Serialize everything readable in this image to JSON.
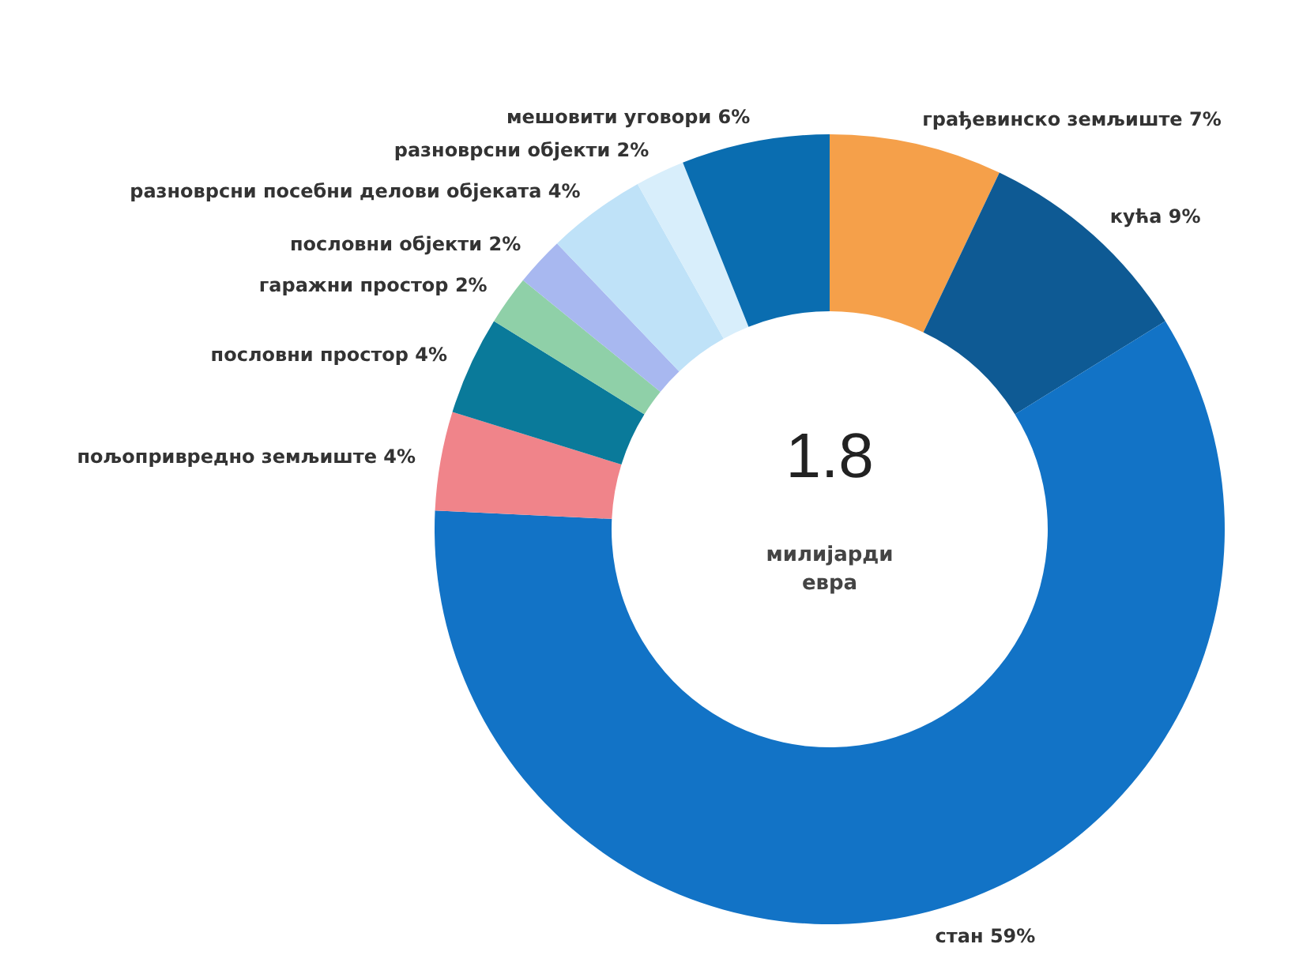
{
  "chart_data": {
    "type": "donut",
    "categories": [
      "грађевинско земљиште",
      "кућа",
      "стан",
      "пољопривредно земљиште",
      "пословни простор",
      "гаражни простор",
      "пословни објекти",
      "разноврсни посебни делови објеката",
      "разноврсни објекти",
      "мешовити уговори"
    ],
    "values": [
      7,
      9,
      59,
      4,
      4,
      2,
      2,
      4,
      2,
      6
    ],
    "value_labels": [
      "7%",
      "9%",
      "59%",
      "4%",
      "4%",
      "2%",
      "2%",
      "4%",
      "2%",
      "6%"
    ],
    "colors": [
      "#f5a04a",
      "#0e5a94",
      "#1273c6",
      "#f0848a",
      "#0a7a9a",
      "#8fd0a8",
      "#a8b8f0",
      "#bfe2f8",
      "#d8eefb",
      "#0a6db0"
    ],
    "annotations": [
      "1.8",
      "милијарди евра"
    ]
  }
}
